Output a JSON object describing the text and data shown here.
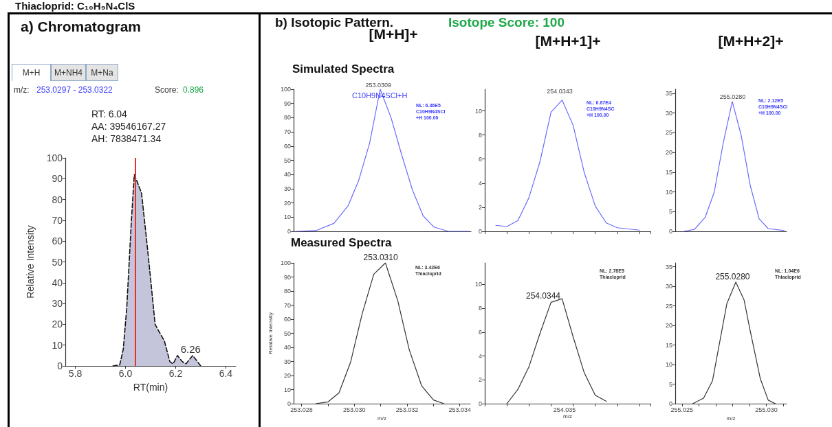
{
  "chart_data": [
    {
      "type": "area",
      "title": "a) Chromatogram",
      "xlabel": "RT(min)",
      "ylabel": "Relative Intensity",
      "xlim": [
        5.76,
        6.44
      ],
      "xticks": [
        5.8,
        {
          "value": 6,
          "label": "6.0"
        },
        6.2,
        6.4
      ],
      "ylim": [
        0,
        100
      ],
      "yticks": [
        0,
        10,
        20,
        30,
        40,
        50,
        60,
        70,
        80,
        90,
        100
      ],
      "marker": "none",
      "line_style": "dashed",
      "x": [
        5.95,
        5.977,
        5.991,
        6.005,
        6.023,
        6.035,
        6.045,
        6.064,
        6.082,
        6.1,
        6.118,
        6.136,
        6.155,
        6.177,
        6.19,
        6.207,
        6.227,
        6.241,
        6.268,
        6.3
      ],
      "series": [
        {
          "color": "#c4c4da",
          "values": [
            0,
            0.5,
            8,
            28,
            69,
            92,
            89,
            83,
            63,
            42,
            20,
            16,
            12,
            2,
            1,
            5,
            2,
            1,
            5,
            0
          ]
        }
      ],
      "ref_lines": [
        {
          "axis": "x",
          "value": 6.04,
          "color": "#e8302a"
        }
      ],
      "annotations": [
        "Thiacloprid: C₁₀H₉N₄ClS",
        "M+H",
        "M+NH4",
        "M+Na",
        "m/z:",
        "253.0297 - 253.0322",
        "Score:",
        "0.896",
        "RT: 6.04",
        "AA: 39546167.27",
        "AH: 7838471.34",
        {
          "text": "6.26",
          "x": 6.26,
          "y": 5
        }
      ]
    },
    {
      "type": "line",
      "title": "[M+H]+",
      "xlim": [
        253.0277,
        253.0344
      ],
      "ylim": [
        0,
        100
      ],
      "yticks": [
        0,
        10,
        20,
        30,
        40,
        50,
        60,
        70,
        80,
        90,
        100
      ],
      "tick_labels": "y",
      "marker": "none",
      "x": [
        253.0278,
        253.02854,
        253.02922,
        253.02976,
        253.03016,
        253.03057,
        253.03097,
        253.03138,
        253.03178,
        253.03219,
        253.03259,
        253.033,
        253.03354,
        253.03432
      ],
      "series": [
        {
          "color": "#6a6aff",
          "values": [
            0,
            0.5,
            5.6,
            18,
            36,
            62,
            100,
            80,
            54,
            29,
            11,
            3,
            0,
            0
          ]
        }
      ],
      "annotations": [
        "b) Isotopic Pattern.",
        "Isotope Score: 100",
        "Simulated Spectra",
        "C10H9N4SCl+H",
        "NL: 6.36E5\nC10H9N4SCl\n+H 100.00",
        {
          "text": "253.0309",
          "x": 253.0309,
          "y": 100
        }
      ]
    },
    {
      "type": "line",
      "title": "[M+H+1]+",
      "categories": [
        null,
        null,
        null,
        null,
        null,
        null,
        null,
        null,
        null,
        null,
        null,
        null,
        null,
        null,
        null,
        null
      ],
      "ylim": [
        0,
        11.8
      ],
      "yticks": [
        0,
        2,
        4,
        6,
        8,
        10
      ],
      "tick_labels": "y",
      "marker": "none",
      "series": [
        {
          "color": "#6a6aff",
          "values": [
            null,
            0.5,
            0.4,
            0.9,
            2.8,
            5.8,
            9.9,
            10.9,
            8.8,
            4.9,
            2.1,
            0.7,
            0.3,
            0.2,
            0.1,
            null
          ]
        }
      ],
      "annotations": [
        "NL: 6.87E4\nC10H9N4SC\n+H 100.00",
        "254.0343"
      ]
    },
    {
      "type": "line",
      "title": "[M+H+2]+",
      "xlim": [
        255.0246,
        255.0312
      ],
      "ylim": [
        0,
        36
      ],
      "yticks": [
        0,
        5,
        10,
        15,
        20,
        25,
        30,
        35
      ],
      "tick_labels": "y",
      "marker": "none",
      "x": [
        255.02511,
        255.02574,
        255.02638,
        255.02691,
        255.02745,
        255.02798,
        255.02851,
        255.02904,
        255.02957,
        255.03011,
        255.03106
      ],
      "series": [
        {
          "color": "#6a6aff",
          "values": [
            0,
            0.5,
            3.6,
            9.9,
            22.5,
            32.9,
            24.3,
            11.7,
            3.2,
            0.7,
            0.2
          ]
        }
      ],
      "annotations": [
        "NL: 2.12E5\nC10H9N4SCl\n+H 100.00",
        {
          "text": "255.0280",
          "x": 255.028,
          "y": 32.9
        }
      ]
    },
    {
      "type": "line",
      "xlabel": "m/z",
      "ylabel": "Relative Intensity",
      "xlim": [
        253.0277,
        253.0344
      ],
      "xticks": [
        {
          "value": 253.028,
          "label": "253.028"
        },
        {
          "value": 253.029,
          "label": null
        },
        {
          "value": 253.03,
          "label": "253.030"
        },
        {
          "value": 253.031,
          "label": null
        },
        {
          "value": 253.032,
          "label": "253.032"
        },
        {
          "value": 253.033,
          "label": null
        },
        {
          "value": 253.034,
          "label": "253.034"
        }
      ],
      "ylim": [
        0,
        100
      ],
      "yticks": [
        0,
        10,
        20,
        30,
        40,
        50,
        60,
        70,
        80,
        90,
        100
      ],
      "marker": "none",
      "x": [
        253.02854,
        253.02901,
        253.02942,
        253.02986,
        253.0303,
        253.03074,
        253.03118,
        253.03165,
        253.03208,
        253.03255,
        253.033,
        253.0334
      ],
      "series": [
        {
          "color": "#333333",
          "values": [
            0,
            1.3,
            7.7,
            29.5,
            64,
            92,
            100,
            73,
            38.5,
            12.8,
            2.6,
            0
          ]
        }
      ],
      "annotations": [
        "Measured Spectra",
        "NL: 3.42E6\nThiacloprid",
        {
          "text": "253.0310",
          "x": 253.031,
          "y": 100
        }
      ]
    },
    {
      "type": "line",
      "xlabel": "m/z",
      "categories": [
        null,
        null,
        null,
        null,
        null,
        null,
        null,
        null,
        null,
        null,
        null,
        null,
        null,
        null,
        null,
        null
      ],
      "ylim": [
        0,
        11.8
      ],
      "yticks": [
        0,
        2,
        4,
        6,
        8,
        10
      ],
      "marker": "none",
      "series": [
        {
          "color": "#333333",
          "values": [
            null,
            null,
            0,
            1.2,
            3.1,
            5.9,
            8.5,
            8.8,
            5.6,
            2.6,
            0.7,
            0.2,
            null,
            null,
            null,
            null
          ]
        }
      ],
      "annotations": [
        "NL: 2.78E5\nThiacloprid",
        "254.0344",
        "254.035"
      ]
    },
    {
      "type": "line",
      "xlabel": "m/z",
      "xlim": [
        255.0246,
        255.0312
      ],
      "xticks": [
        {
          "value": 255.025,
          "label": "255.025"
        },
        {
          "value": 255.026,
          "label": null
        },
        {
          "value": 255.027,
          "label": null
        },
        {
          "value": 255.028,
          "label": null
        },
        {
          "value": 255.029,
          "label": null
        },
        {
          "value": 255.03,
          "label": "255.030"
        },
        {
          "value": 255.031,
          "label": null
        }
      ],
      "ylim": [
        0,
        36
      ],
      "yticks": [
        0,
        5,
        10,
        15,
        20,
        25,
        30,
        35
      ],
      "marker": "none",
      "x": [
        255.02564,
        255.02628,
        255.02681,
        255.02766,
        255.02819,
        255.02868,
        255.02904,
        255.02964,
        255.03011,
        255.03053
      ],
      "series": [
        {
          "color": "#333333",
          "values": [
            0,
            1.4,
            5.9,
            25.6,
            31.1,
            26.5,
            18.7,
            6.4,
            0.9,
            0
          ]
        }
      ],
      "annotations": [
        "NL: 1.04E6\nThiacloprid",
        {
          "text": "255.0280",
          "x": 255.028,
          "y": 31.1
        }
      ]
    }
  ]
}
